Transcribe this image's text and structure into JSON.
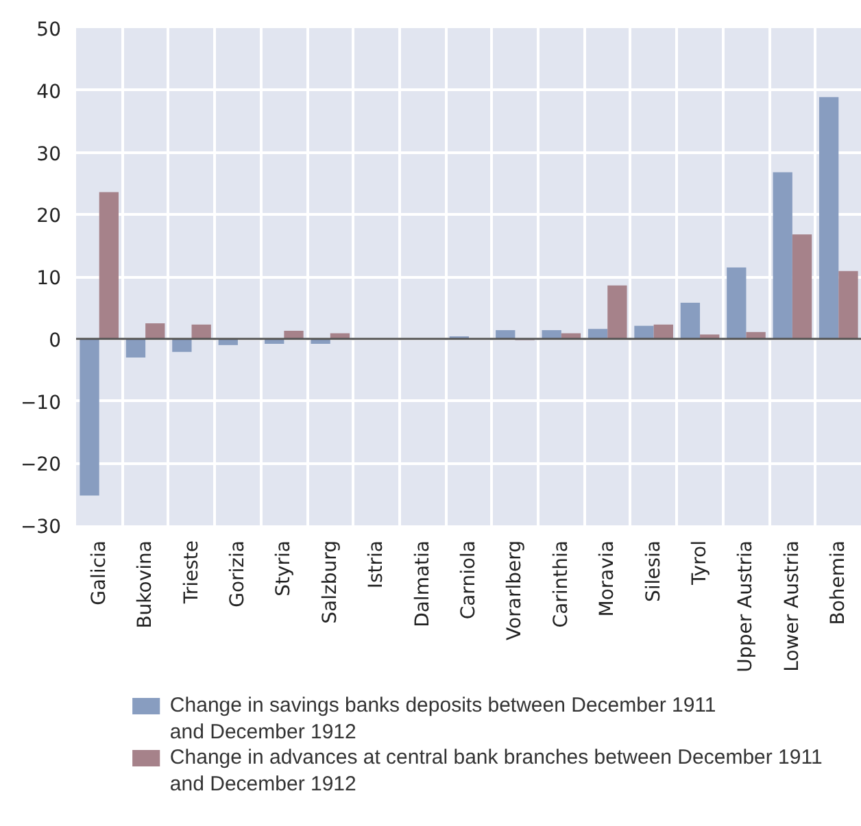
{
  "chart_data": {
    "type": "bar",
    "categories": [
      "Galicia",
      "Bukovina",
      "Trieste",
      "Gorizia",
      "Styria",
      "Salzburg",
      "Istria",
      "Dalmatia",
      "Carniola",
      "Vorarlberg",
      "Carinthia",
      "Moravia",
      "Silesia",
      "Tyrol",
      "Upper Austria",
      "Lower Austria",
      "Bohemia"
    ],
    "series": [
      {
        "name": "Change in savings banks deposits between December 1911\nand December 1912",
        "color": "#889dc0",
        "values": [
          -25.2,
          -3.0,
          -2.1,
          -1.0,
          -0.8,
          -0.8,
          0,
          0,
          0.4,
          1.4,
          1.4,
          1.6,
          2.1,
          5.8,
          11.5,
          26.8,
          38.9
        ]
      },
      {
        "name": "Change in advances at central bank branches between December 1911\nand December 1912",
        "color": "#a6828a",
        "values": [
          23.6,
          2.5,
          2.3,
          0,
          1.3,
          0.9,
          0,
          0,
          null,
          -0.2,
          0.9,
          8.6,
          2.3,
          0.7,
          1.1,
          16.8,
          10.9
        ]
      }
    ],
    "ylim": [
      -30,
      50
    ],
    "yticks": [
      {
        "value": -30,
        "label": "−30"
      },
      {
        "value": -20,
        "label": "−20"
      },
      {
        "value": -10,
        "label": "−10"
      },
      0,
      10,
      20,
      30,
      40,
      50
    ],
    "grid": true,
    "legend": "bottom"
  }
}
